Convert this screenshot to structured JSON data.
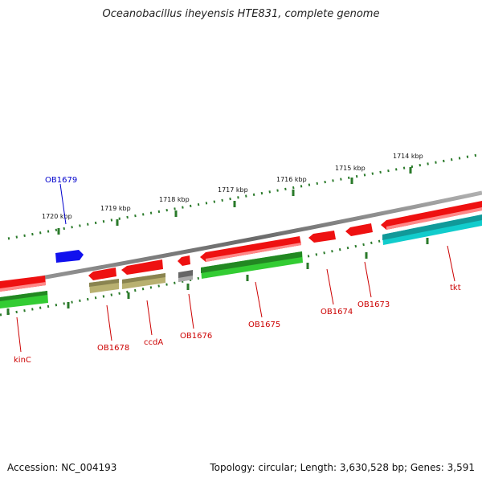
{
  "title": "Oceanobacillus iheyensis HTE831, complete genome",
  "footer": {
    "accession": "Accession: NC_004193",
    "summary": "Topology: circular; Length: 3,630,528 bp; Genes: 3,591"
  },
  "colors": {
    "backbone": "#7a7a7a",
    "ruler": "#2a7a2a",
    "cds_red": "#ee1111",
    "label_red": "#cc0000",
    "label_blue": "#0000cc",
    "gene_blue": "#1111ee",
    "rna_green": "#33cc33",
    "dark_green": "#228822",
    "khaki": "#b8b070",
    "gray": "#666666",
    "cyan": "#11cccc"
  },
  "kbp_labels": [
    "1714 kbp",
    "1715 kbp",
    "1716 kbp",
    "1717 kbp",
    "1718 kbp",
    "1719 kbp",
    "1720 kbp"
  ],
  "gene_labels": [
    "OB1679",
    "kinC",
    "OB1678",
    "ccdA",
    "OB1676",
    "OB1675",
    "OB1674",
    "OB1673",
    "tkt"
  ]
}
